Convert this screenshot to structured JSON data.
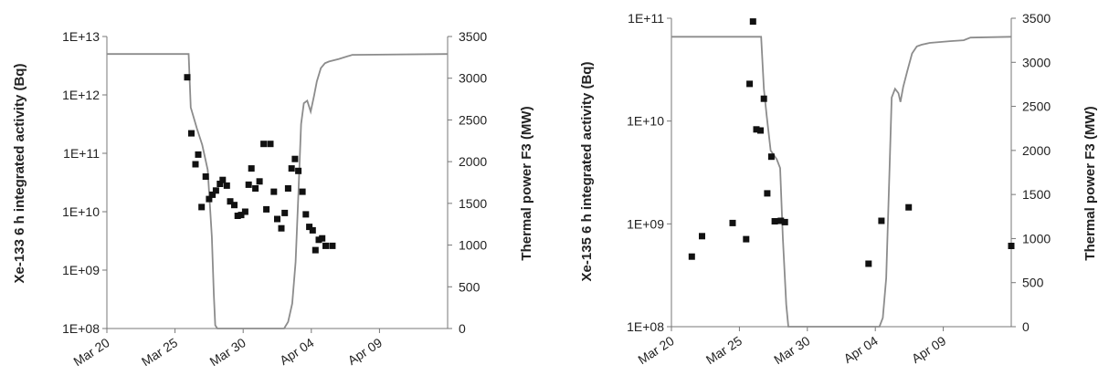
{
  "chart_data": [
    {
      "type": "scatter",
      "title": "",
      "ylabel_left": "Xe-133 6 h integrated activity (Bq)",
      "ylabel_right": "Thermal power F3 (MW)",
      "x_ticks": [
        "Mar 20",
        "Mar 25",
        "Mar 30",
        "Apr 04",
        "Apr 09"
      ],
      "x_range_days": [
        0,
        25
      ],
      "y_left_scale": "log",
      "y_left_ticks": [
        "1E+08",
        "1E+09",
        "1E+10",
        "1E+11",
        "1E+12",
        "1E+13"
      ],
      "y_left_range": [
        100000000.0,
        10000000000000.0
      ],
      "y_right_ticks": [
        "0",
        "500",
        "1000",
        "1500",
        "2000",
        "2500",
        "3000",
        "3500"
      ],
      "y_right_range": [
        0,
        3500
      ],
      "series": [
        {
          "type": "scatter",
          "points": [
            [
              5.9,
              2000000000000.0
            ],
            [
              6.2,
              220000000000.0
            ],
            [
              6.5,
              65000000000.0
            ],
            [
              6.7,
              95000000000.0
            ],
            [
              6.95,
              12000000000.0
            ],
            [
              7.25,
              40000000000.0
            ],
            [
              7.5,
              16500000000.0
            ],
            [
              7.75,
              19500000000.0
            ],
            [
              8.0,
              23000000000.0
            ],
            [
              8.3,
              30000000000.0
            ],
            [
              8.5,
              35000000000.0
            ],
            [
              8.8,
              28000000000.0
            ],
            [
              9.05,
              15000000000.0
            ],
            [
              9.35,
              13000000000.0
            ],
            [
              9.6,
              8500000000.0
            ],
            [
              9.85,
              8800000000.0
            ],
            [
              10.15,
              10000000000.0
            ],
            [
              10.4,
              29000000000.0
            ],
            [
              10.6,
              55000000000.0
            ],
            [
              10.9,
              25000000000.0
            ],
            [
              11.2,
              33000000000.0
            ],
            [
              11.5,
              145000000000.0
            ],
            [
              11.7,
              11000000000.0
            ],
            [
              12.0,
              145000000000.0
            ],
            [
              12.25,
              22000000000.0
            ],
            [
              12.5,
              7500000000.0
            ],
            [
              12.8,
              5200000000.0
            ],
            [
              13.05,
              9500000000.0
            ],
            [
              13.3,
              25000000000.0
            ],
            [
              13.55,
              55000000000.0
            ],
            [
              13.8,
              80000000000.0
            ],
            [
              14.05,
              50000000000.0
            ],
            [
              14.35,
              22000000000.0
            ],
            [
              14.6,
              9000000000.0
            ],
            [
              14.85,
              5500000000.0
            ],
            [
              15.1,
              4800000000.0
            ],
            [
              15.3,
              2200000000.0
            ],
            [
              15.55,
              3300000000.0
            ],
            [
              15.8,
              3500000000.0
            ],
            [
              16.05,
              2600000000.0
            ],
            [
              16.55,
              2600000000.0
            ]
          ]
        }
      ],
      "power_curve": [
        [
          0,
          3290
        ],
        [
          6.0,
          3290
        ],
        [
          6.15,
          2650
        ],
        [
          6.6,
          2400
        ],
        [
          7.0,
          2200
        ],
        [
          7.4,
          1900
        ],
        [
          7.7,
          1100
        ],
        [
          7.85,
          400
        ],
        [
          7.95,
          40
        ],
        [
          8.1,
          0
        ],
        [
          13.0,
          0
        ],
        [
          13.3,
          80
        ],
        [
          13.6,
          300
        ],
        [
          13.85,
          800
        ],
        [
          14.05,
          1600
        ],
        [
          14.25,
          2450
        ],
        [
          14.45,
          2700
        ],
        [
          14.7,
          2730
        ],
        [
          14.95,
          2600
        ],
        [
          15.2,
          2790
        ],
        [
          15.4,
          2960
        ],
        [
          15.7,
          3120
        ],
        [
          16.0,
          3180
        ],
        [
          16.3,
          3200
        ],
        [
          17.0,
          3230
        ],
        [
          18.0,
          3280
        ],
        [
          25,
          3290
        ]
      ]
    },
    {
      "type": "scatter",
      "title": "",
      "ylabel_left": "Xe-135 6 h integrated activity (Bq)",
      "ylabel_right": "Thermal power F3 (MW)",
      "x_ticks": [
        "Mar 20",
        "Mar 25",
        "Mar 30",
        "Apr 04",
        "Apr 09"
      ],
      "x_range_days": [
        0,
        25
      ],
      "y_left_scale": "log",
      "y_left_ticks": [
        "1E+08",
        "1E+09",
        "1E+10",
        "1E+11"
      ],
      "y_left_range": [
        100000000.0,
        100000000000.0
      ],
      "y_right_ticks": [
        "0",
        "500",
        "1000",
        "1500",
        "2000",
        "2500",
        "3000",
        "3500"
      ],
      "y_right_range": [
        0,
        3500
      ],
      "series": [
        {
          "type": "scatter",
          "points": [
            [
              1.5,
              480000000.0
            ],
            [
              2.25,
              760000000.0
            ],
            [
              4.5,
              1020000000.0
            ],
            [
              5.5,
              710000000.0
            ],
            [
              5.75,
              23000000000.0
            ],
            [
              6.0,
              93000000000.0
            ],
            [
              6.25,
              8300000000.0
            ],
            [
              6.55,
              8100000000.0
            ],
            [
              6.8,
              16500000000.0
            ],
            [
              7.05,
              1980000000.0
            ],
            [
              7.35,
              4500000000.0
            ],
            [
              7.6,
              1060000000.0
            ],
            [
              8.05,
              1070000000.0
            ],
            [
              8.35,
              1040000000.0
            ],
            [
              14.5,
              410000000.0
            ],
            [
              15.45,
              1070000000.0
            ],
            [
              17.45,
              1450000000.0
            ],
            [
              25.0,
              610000000.0
            ]
          ]
        }
      ],
      "power_curve": [
        [
          0,
          3290
        ],
        [
          6.6,
          3290
        ],
        [
          6.8,
          2700
        ],
        [
          7.0,
          2400
        ],
        [
          7.3,
          2000
        ],
        [
          7.75,
          1900
        ],
        [
          8.0,
          1800
        ],
        [
          8.2,
          1000
        ],
        [
          8.45,
          250
        ],
        [
          8.6,
          0
        ],
        [
          15.3,
          0
        ],
        [
          15.55,
          100
        ],
        [
          15.8,
          550
        ],
        [
          16.05,
          1800
        ],
        [
          16.2,
          2600
        ],
        [
          16.45,
          2700
        ],
        [
          16.7,
          2650
        ],
        [
          16.85,
          2550
        ],
        [
          17.05,
          2720
        ],
        [
          17.35,
          2900
        ],
        [
          17.7,
          3100
        ],
        [
          18.05,
          3180
        ],
        [
          18.4,
          3200
        ],
        [
          19.0,
          3220
        ],
        [
          20.5,
          3240
        ],
        [
          21.5,
          3250
        ],
        [
          22.0,
          3280
        ],
        [
          25,
          3290
        ]
      ]
    }
  ]
}
